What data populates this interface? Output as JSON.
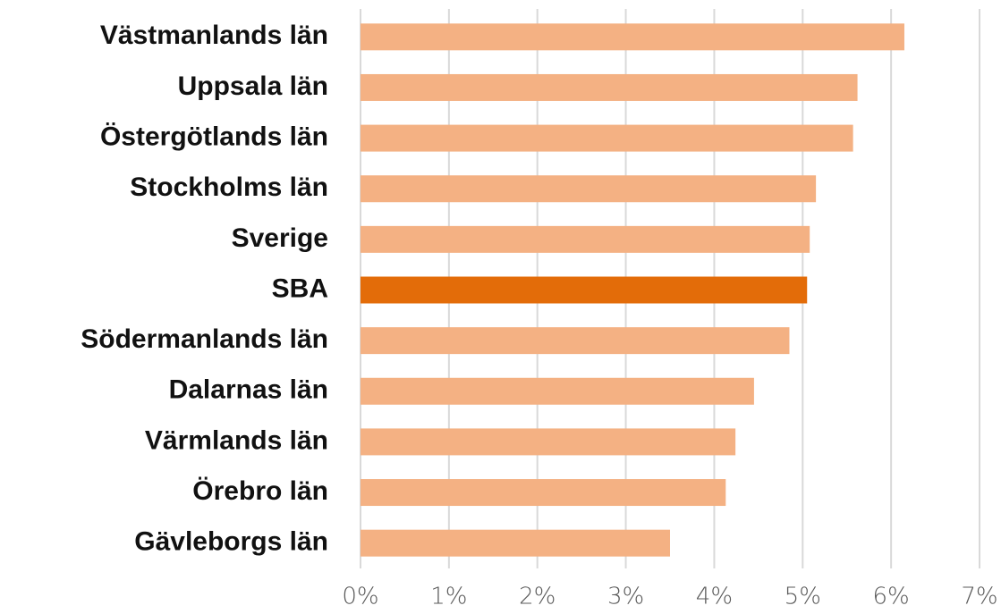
{
  "chart_data": {
    "type": "barh",
    "categories": [
      "Västmanlands län",
      "Uppsala län",
      "Östergötlands län",
      "Stockholms län",
      "Sverige",
      "SBA",
      "Södermanlands län",
      "Dalarnas län",
      "Värmlands län",
      "Örebro län",
      "Gävleborgs län"
    ],
    "values": [
      6.15,
      5.62,
      5.57,
      5.15,
      5.08,
      5.05,
      4.85,
      4.45,
      4.24,
      4.13,
      3.5
    ],
    "colors": [
      "#f4b183",
      "#f4b183",
      "#f4b183",
      "#f4b183",
      "#f4b183",
      "#e36c09",
      "#f4b183",
      "#f4b183",
      "#f4b183",
      "#f4b183",
      "#f4b183"
    ],
    "xlim": [
      0,
      7
    ],
    "xticks": [
      {
        "value": 0,
        "label": "0%"
      },
      {
        "value": 1,
        "label": "1%"
      },
      {
        "value": 2,
        "label": "2%"
      },
      {
        "value": 3,
        "label": "3%"
      },
      {
        "value": 4,
        "label": "4%"
      },
      {
        "value": 5,
        "label": "5%"
      },
      {
        "value": 6,
        "label": "6%"
      },
      {
        "value": 7,
        "label": "7%"
      }
    ],
    "grid": true
  }
}
